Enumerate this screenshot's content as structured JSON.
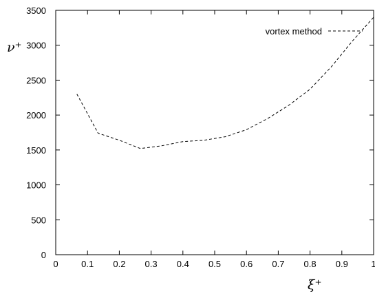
{
  "chart_data": {
    "type": "line",
    "xlabel": "ξ⁺",
    "ylabel": "ν⁺",
    "xlim": [
      0,
      1
    ],
    "ylim": [
      0,
      3500
    ],
    "x_ticks": [
      "0",
      "0.1",
      "0.2",
      "0.3",
      "0.4",
      "0.5",
      "0.6",
      "0.7",
      "0.8",
      "0.9",
      "1"
    ],
    "y_ticks": [
      "0",
      "500",
      "1000",
      "1500",
      "2000",
      "2500",
      "3000",
      "3500"
    ],
    "grid": false,
    "legend_position": "top-right",
    "series": [
      {
        "name": "vortex method",
        "style": "dashed",
        "color": "#000000",
        "x": [
          0.0667,
          0.1333,
          0.2,
          0.2667,
          0.3333,
          0.4,
          0.4667,
          0.5333,
          0.6,
          0.6667,
          0.7333,
          0.8,
          0.8667,
          0.9333,
          1.0
        ],
        "y": [
          2300,
          1740,
          1640,
          1520,
          1560,
          1620,
          1640,
          1690,
          1790,
          1950,
          2140,
          2370,
          2690,
          3060,
          3400
        ]
      }
    ]
  }
}
